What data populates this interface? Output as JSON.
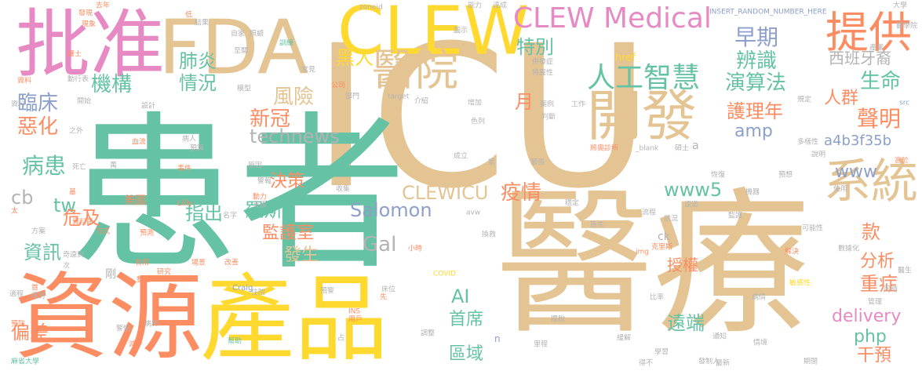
{
  "palette": {
    "green": "#66c2a5",
    "orange": "#fc8d62",
    "blue": "#8da0cb",
    "pink": "#e78ac3",
    "lime": "#a6d854",
    "yellow": "#ffd92f",
    "tan": "#e5c494",
    "gray": "#b3b3b3"
  },
  "words": [
    {
      "text": "ICU",
      "color": "tan",
      "size": 250
    },
    {
      "text": "患者",
      "color": "green",
      "size": 215
    },
    {
      "text": "醫療",
      "color": "tan",
      "size": 200
    },
    {
      "text": "資源",
      "color": "orange",
      "size": 120
    },
    {
      "text": "產品",
      "color": "yellow",
      "size": 120
    },
    {
      "text": "批准",
      "color": "pink",
      "size": 95
    },
    {
      "text": "FDA",
      "color": "tan",
      "size": 95
    },
    {
      "text": "CLEW",
      "color": "yellow",
      "size": 85
    },
    {
      "text": "開發",
      "color": "tan",
      "size": 70
    },
    {
      "text": "系統",
      "color": "tan",
      "size": 60
    },
    {
      "text": "提供",
      "color": "orange",
      "size": 55
    },
    {
      "text": "醫院",
      "color": "tan",
      "size": 55
    },
    {
      "text": "CLEW Medical",
      "color": "pink",
      "size": 36
    },
    {
      "text": "人工智慧",
      "color": "green",
      "size": 36
    },
    {
      "text": "早期",
      "color": "blue",
      "size": 28
    },
    {
      "text": "辨識",
      "color": "green",
      "size": 26
    },
    {
      "text": "特別",
      "color": "green",
      "size": 24
    },
    {
      "text": "黑人",
      "color": "yellow",
      "size": 24
    },
    {
      "text": "肺炎",
      "color": "green",
      "size": 24
    },
    {
      "text": "機構",
      "color": "green",
      "size": 26
    },
    {
      "text": "情況",
      "color": "green",
      "size": 24
    },
    {
      "text": "演算法",
      "color": "green",
      "size": 26
    },
    {
      "text": "生命",
      "color": "green",
      "size": 26
    },
    {
      "text": "西班牙裔",
      "color": "gray",
      "size": 20
    },
    {
      "text": "臨床",
      "color": "blue",
      "size": 26
    },
    {
      "text": "惡化",
      "color": "orange",
      "size": 26
    },
    {
      "text": "風險",
      "color": "tan",
      "size": 26
    },
    {
      "text": "新冠",
      "color": "orange",
      "size": 26
    },
    {
      "text": "月",
      "color": "orange",
      "size": 24
    },
    {
      "text": "護理年",
      "color": "orange",
      "size": 24
    },
    {
      "text": "人群",
      "color": "orange",
      "size": 22
    },
    {
      "text": "聲明",
      "color": "orange",
      "size": 28
    },
    {
      "text": "technews",
      "color": "gray",
      "size": 24
    },
    {
      "text": "amp",
      "color": "blue",
      "size": 22
    },
    {
      "text": "a4b3f35b",
      "color": "blue",
      "size": 18
    },
    {
      "text": "www",
      "color": "blue",
      "size": 22
    },
    {
      "text": "病患",
      "color": "green",
      "size": 28
    },
    {
      "text": "決策",
      "color": "orange",
      "size": 22
    },
    {
      "text": "疫情",
      "color": "orange",
      "size": 26
    },
    {
      "text": "CLEWICU",
      "color": "tan",
      "size": 24
    },
    {
      "text": "www5",
      "color": "green",
      "size": 24
    },
    {
      "text": "cb",
      "color": "gray",
      "size": 24
    },
    {
      "text": "tw",
      "color": "green",
      "size": 24
    },
    {
      "text": "危及",
      "color": "orange",
      "size": 24
    },
    {
      "text": "指出",
      "color": "green",
      "size": 24
    },
    {
      "text": "羅斯",
      "color": "green",
      "size": 24
    },
    {
      "text": "Salomon",
      "color": "blue",
      "size": 24
    },
    {
      "text": "款",
      "color": "orange",
      "size": 24
    },
    {
      "text": "監護室",
      "color": "orange",
      "size": 22
    },
    {
      "text": "資訊",
      "color": "green",
      "size": 24
    },
    {
      "text": "發生",
      "color": "tan",
      "size": 22
    },
    {
      "text": "Gal",
      "color": "gray",
      "size": 26
    },
    {
      "text": "分析",
      "color": "orange",
      "size": 22
    },
    {
      "text": "授權",
      "color": "orange",
      "size": 20
    },
    {
      "text": "重症",
      "color": "orange",
      "size": 24
    },
    {
      "text": "AI",
      "color": "green",
      "size": 24
    },
    {
      "text": "偏差",
      "color": "orange",
      "size": 24
    },
    {
      "text": "首席",
      "color": "green",
      "size": 22
    },
    {
      "text": "delivery",
      "color": "pink",
      "size": 22
    },
    {
      "text": "遠端",
      "color": "green",
      "size": 24
    },
    {
      "text": "php",
      "color": "green",
      "size": 22
    },
    {
      "text": "區域",
      "color": "green",
      "size": 22
    },
    {
      "text": "干預",
      "color": "orange",
      "size": 22
    },
    {
      "text": "美國",
      "color": "orange",
      "size": 14
    },
    {
      "text": "剛",
      "color": "gray",
      "size": 14
    },
    {
      "text": "ck",
      "color": "gray",
      "size": 14
    },
    {
      "text": "a",
      "color": "gray",
      "size": 14
    },
    {
      "text": "href",
      "color": "yellow",
      "size": 13
    },
    {
      "text": "Lilly",
      "color": "orange",
      "size": 10
    },
    {
      "text": "Craig",
      "color": "blue",
      "size": 10
    },
    {
      "text": "COVID",
      "color": "yellow",
      "size": 9
    },
    {
      "text": "INSERT_RANDOM_NUMBER_HERE",
      "color": "blue",
      "size": 9
    },
    {
      "text": "zoneid",
      "color": "gray",
      "size": 9
    },
    {
      "text": "target",
      "color": "gray",
      "size": 9
    },
    {
      "text": "_blank",
      "color": "gray",
      "size": 9
    },
    {
      "text": "img",
      "color": "orange",
      "size": 9
    },
    {
      "text": "src",
      "color": "blue",
      "size": 9
    },
    {
      "text": "avw",
      "color": "gray",
      "size": 9
    },
    {
      "text": "INS",
      "color": "orange",
      "size": 9
    },
    {
      "text": "n",
      "color": "blue",
      "size": 12
    },
    {
      "text": "去年",
      "color": "orange",
      "size": 9
    },
    {
      "text": "能力",
      "color": "gray",
      "size": 9
    },
    {
      "text": "達成",
      "color": "gray",
      "size": 9
    },
    {
      "text": "自家",
      "color": "gray",
      "size": 9
    },
    {
      "text": "照顧",
      "color": "gray",
      "size": 9
    },
    {
      "text": "訓練",
      "color": "green",
      "size": 9
    },
    {
      "text": "至關",
      "color": "gray",
      "size": 9
    },
    {
      "text": "常見",
      "color": "gray",
      "size": 9
    },
    {
      "text": "公司",
      "color": "orange",
      "size": 9
    },
    {
      "text": "部門",
      "color": "gray",
      "size": 9
    },
    {
      "text": "介紹",
      "color": "gray",
      "size": 9
    },
    {
      "text": "模型",
      "color": "gray",
      "size": 9
    },
    {
      "text": "併發症",
      "color": "gray",
      "size": 9
    },
    {
      "text": "特異性",
      "color": "gray",
      "size": 9
    },
    {
      "text": "案例",
      "color": "gray",
      "size": 9
    },
    {
      "text": "判斷",
      "color": "gray",
      "size": 9
    },
    {
      "text": "色列",
      "color": "gray",
      "size": 9
    },
    {
      "text": "工作",
      "color": "gray",
      "size": 9
    },
    {
      "text": "規定",
      "color": "gray",
      "size": 9
    },
    {
      "text": "醫學院",
      "color": "gray",
      "size": 9
    },
    {
      "text": "機器",
      "color": "gray",
      "size": 9
    },
    {
      "text": "恢復",
      "color": "gray",
      "size": 9
    },
    {
      "text": "預想",
      "color": "gray",
      "size": 9
    },
    {
      "text": "多樣性",
      "color": "gray",
      "size": 9
    },
    {
      "text": "成立",
      "color": "gray",
      "size": 9
    },
    {
      "text": "碩士",
      "color": "gray",
      "size": 9
    },
    {
      "text": "將奧診所",
      "color": "orange",
      "size": 9
    },
    {
      "text": "緊張",
      "color": "gray",
      "size": 9
    },
    {
      "text": "家",
      "color": "gray",
      "size": 9
    },
    {
      "text": "收集",
      "color": "gray",
      "size": 9
    },
    {
      "text": "穩定",
      "color": "gray",
      "size": 9
    },
    {
      "text": "流程",
      "color": "gray",
      "size": 9
    },
    {
      "text": "監護",
      "color": "gray",
      "size": 9
    },
    {
      "text": "可能性",
      "color": "gray",
      "size": 9
    },
    {
      "text": "解決",
      "color": "orange",
      "size": 9
    },
    {
      "text": "數據化",
      "color": "gray",
      "size": 9
    },
    {
      "text": "敏感性",
      "color": "yellow",
      "size": 9
    },
    {
      "text": "病情",
      "color": "gray",
      "size": 9
    },
    {
      "text": "管理",
      "color": "gray",
      "size": 9
    },
    {
      "text": "比率",
      "color": "gray",
      "size": 9
    },
    {
      "text": "通知",
      "color": "gray",
      "size": 9
    },
    {
      "text": "學習",
      "color": "gray",
      "size": 9
    },
    {
      "text": "發制人",
      "color": "gray",
      "size": 9
    },
    {
      "text": "期間",
      "color": "gray",
      "size": 9
    },
    {
      "text": "得不",
      "color": "gray",
      "size": 9
    },
    {
      "text": "最新",
      "color": "gray",
      "size": 9
    },
    {
      "text": "小時",
      "color": "orange",
      "size": 9
    },
    {
      "text": "換救",
      "color": "gray",
      "size": 9
    },
    {
      "text": "克里斯",
      "color": "orange",
      "size": 9
    },
    {
      "text": "原先",
      "color": "gray",
      "size": 9
    },
    {
      "text": "狀況",
      "color": "gray",
      "size": 9
    },
    {
      "text": "遠道",
      "color": "gray",
      "size": 9
    },
    {
      "text": "床位",
      "color": "gray",
      "size": 9
    },
    {
      "text": "先",
      "color": "orange",
      "size": 9
    },
    {
      "text": "用戶",
      "color": "orange",
      "size": 9
    },
    {
      "text": "改善",
      "color": "orange",
      "size": 9
    },
    {
      "text": "調整",
      "color": "gray",
      "size": 9
    },
    {
      "text": "擺脫",
      "color": "gray",
      "size": 9
    },
    {
      "text": "里程",
      "color": "gray",
      "size": 9
    },
    {
      "text": "預警",
      "color": "gray",
      "size": 9
    },
    {
      "text": "占",
      "color": "gray",
      "size": 9
    },
    {
      "text": "資料",
      "color": "gray",
      "size": 9
    },
    {
      "text": "之外",
      "color": "gray",
      "size": 9
    },
    {
      "text": "血流",
      "color": "orange",
      "size": 9
    },
    {
      "text": "預算",
      "color": "gray",
      "size": 9
    },
    {
      "text": "病人",
      "color": "gray",
      "size": 9
    },
    {
      "text": "死亡",
      "color": "gray",
      "size": 9
    },
    {
      "text": "萬",
      "color": "gray",
      "size": 9
    },
    {
      "text": "事件",
      "color": "orange",
      "size": 9
    },
    {
      "text": "原因",
      "color": "gray",
      "size": 9
    },
    {
      "text": "警報",
      "color": "gray",
      "size": 9
    },
    {
      "text": "動力",
      "color": "orange",
      "size": 9
    },
    {
      "text": "支援",
      "color": "gray",
      "size": 9
    },
    {
      "text": "名字",
      "color": "gray",
      "size": 9
    },
    {
      "text": "方式",
      "color": "orange",
      "size": 9
    },
    {
      "text": "預測",
      "color": "orange",
      "size": 9
    },
    {
      "text": "有用",
      "color": "orange",
      "size": 9
    },
    {
      "text": "研究",
      "color": "orange",
      "size": 9
    },
    {
      "text": "場景",
      "color": "orange",
      "size": 9
    },
    {
      "text": "麻省大學",
      "color": "green",
      "size": 9
    },
    {
      "text": "預防",
      "color": "orange",
      "size": 9
    },
    {
      "text": "適程",
      "color": "gray",
      "size": 9
    },
    {
      "text": "疲勞",
      "color": "gray",
      "size": 9
    },
    {
      "text": "整合",
      "color": "orange",
      "size": 9
    },
    {
      "text": "住院",
      "color": "gray",
      "size": 9
    },
    {
      "text": "警惕",
      "color": "gray",
      "size": 9
    },
    {
      "text": "減少",
      "color": "orange",
      "size": 9
    },
    {
      "text": "病房",
      "color": "gray",
      "size": 9
    },
    {
      "text": "幫助",
      "color": "green",
      "size": 9
    },
    {
      "text": "奇遠到",
      "color": "gray",
      "size": 9
    },
    {
      "text": "資料節",
      "color": "orange",
      "size": 9
    },
    {
      "text": "方案",
      "color": "gray",
      "size": 9
    },
    {
      "text": "太",
      "color": "orange",
      "size": 9
    },
    {
      "text": "基",
      "color": "orange",
      "size": 9
    },
    {
      "text": "發現",
      "color": "orange",
      "size": 9
    },
    {
      "text": "現象",
      "color": "orange",
      "size": 9
    },
    {
      "text": "低",
      "color": "orange",
      "size": 9
    },
    {
      "text": "結果",
      "color": "gray",
      "size": 9
    },
    {
      "text": "圖示",
      "color": "gray",
      "size": 9
    },
    {
      "text": "資料",
      "color": "orange",
      "size": 9
    },
    {
      "text": "動行表",
      "color": "gray",
      "size": 9
    },
    {
      "text": "開始",
      "color": "gray",
      "size": 9
    },
    {
      "text": "護士",
      "color": "orange",
      "size": 9
    },
    {
      "text": "設計",
      "color": "gray",
      "size": 9
    },
    {
      "text": "增加",
      "color": "gray",
      "size": 9
    },
    {
      "text": "醫生",
      "color": "gray",
      "size": 9
    },
    {
      "text": "同時",
      "color": "gray",
      "size": 9
    },
    {
      "text": "產業",
      "color": "gray",
      "size": 9
    },
    {
      "text": "首",
      "color": "orange",
      "size": 9
    },
    {
      "text": "緩解",
      "color": "gray",
      "size": 9
    },
    {
      "text": "情境",
      "color": "gray",
      "size": 9
    },
    {
      "text": "說明",
      "color": "gray",
      "size": 9
    },
    {
      "text": "使用",
      "color": "gray",
      "size": 9
    },
    {
      "text": "高於",
      "color": "orange",
      "size": 9
    },
    {
      "text": "大學",
      "color": "gray",
      "size": 9
    },
    {
      "text": "次",
      "color": "gray",
      "size": 9
    }
  ]
}
